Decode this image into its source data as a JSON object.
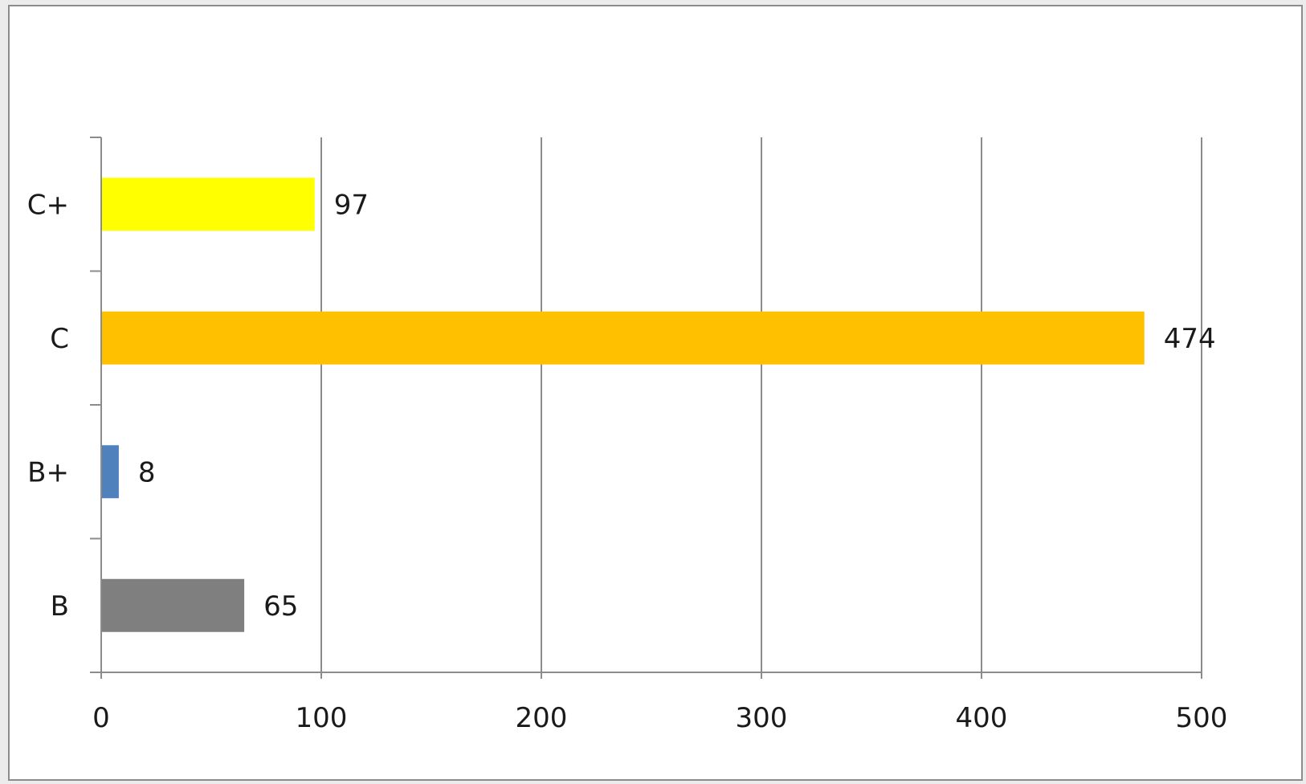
{
  "chart_data": {
    "type": "bar",
    "orientation": "horizontal",
    "categories": [
      "B",
      "B+",
      "C",
      "C+"
    ],
    "values": [
      65,
      8,
      474,
      97
    ],
    "bar_colors": [
      "#7f7f7f",
      "#4f81bd",
      "#ffc000",
      "#ffff00"
    ],
    "data_labels": [
      "65",
      "8",
      "474",
      "97"
    ],
    "xlim": [
      0,
      500
    ],
    "x_ticks": [
      0,
      100,
      200,
      300,
      400,
      500
    ],
    "x_tick_labels": [
      "0",
      "100",
      "200",
      "300",
      "400",
      "500"
    ],
    "grid": "vertical",
    "legend": "none",
    "title": "",
    "xlabel": "",
    "ylabel": ""
  },
  "colors": {
    "background": "#ececec",
    "plot_background": "#ffffff",
    "frame_border": "#8c8c8c",
    "gridline": "#8c8c8c",
    "axis": "#8c8c8c",
    "text": "#1a1a1a"
  }
}
